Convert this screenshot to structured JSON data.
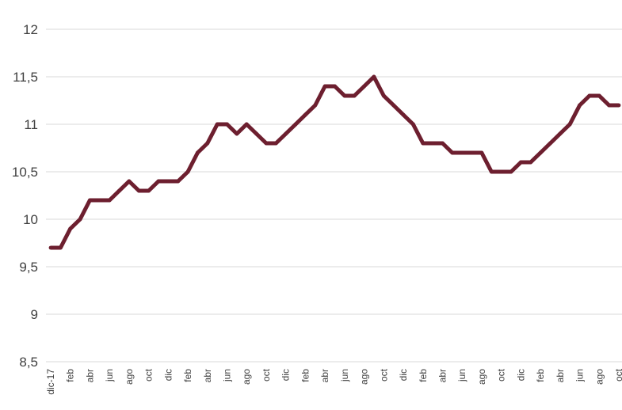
{
  "chart_data": {
    "type": "line",
    "title": "",
    "xlabel": "",
    "ylabel": "",
    "ylim": [
      8.5,
      12
    ],
    "yticks": [
      "8,5",
      "9",
      "9,5",
      "10",
      "10,5",
      "11",
      "11,5",
      "12"
    ],
    "ytick_values": [
      8.5,
      9,
      9.5,
      10,
      10.5,
      11,
      11.5,
      12
    ],
    "grid": true,
    "legend": "none",
    "x_tick_labels": [
      "dic-17",
      "feb",
      "abr",
      "jun",
      "ago",
      "oct",
      "dic",
      "feb",
      "abr",
      "jun",
      "ago",
      "oct",
      "dic",
      "feb",
      "abr",
      "jun",
      "ago",
      "oct",
      "dic",
      "feb",
      "abr",
      "jun",
      "ago",
      "oct",
      "dic",
      "feb",
      "abr",
      "jun",
      "ago",
      "oct"
    ],
    "line_color": "#6d1f2f",
    "series": [
      {
        "values": [
          9.7,
          9.7,
          9.9,
          10.0,
          10.2,
          10.2,
          10.2,
          10.3,
          10.4,
          10.3,
          10.3,
          10.4,
          10.4,
          10.4,
          10.5,
          10.7,
          10.8,
          11.0,
          11.0,
          10.9,
          11.0,
          10.9,
          10.8,
          10.8,
          10.9,
          11.0,
          11.1,
          11.2,
          11.4,
          11.4,
          11.3,
          11.3,
          11.4,
          11.5,
          11.3,
          11.2,
          11.1,
          11.0,
          10.8,
          10.8,
          10.8,
          10.7,
          10.7,
          10.7,
          10.7,
          10.5,
          10.5,
          10.5,
          10.6,
          10.6,
          10.7,
          10.8,
          10.9,
          11.0,
          11.2,
          11.3,
          11.3,
          11.2,
          11.2
        ]
      }
    ]
  }
}
